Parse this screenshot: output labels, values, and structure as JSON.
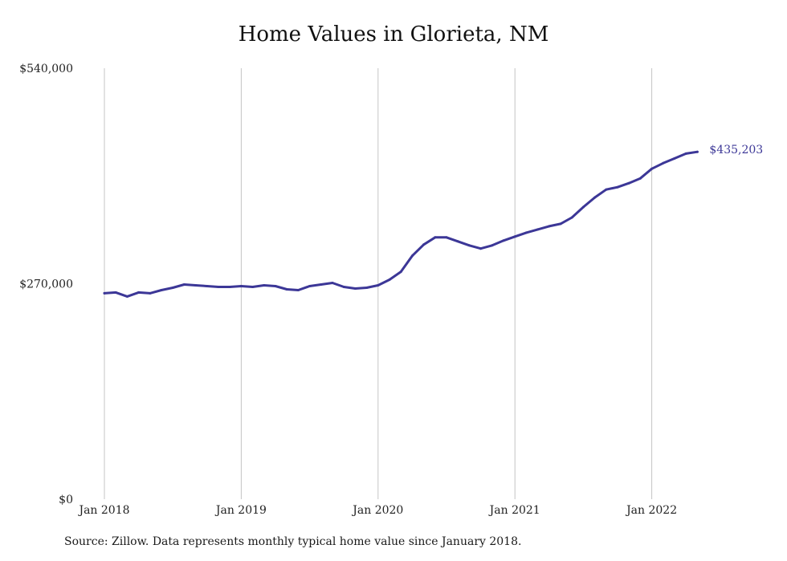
{
  "chart_data": {
    "type": "line",
    "title": "Home Values in Glorieta, NM",
    "xlabel": "",
    "ylabel": "",
    "ylim": [
      0,
      540000
    ],
    "y_ticks": [
      {
        "value": 0,
        "label": "$0"
      },
      {
        "value": 270000,
        "label": "$270,000"
      },
      {
        "value": 540000,
        "label": "$540,000"
      }
    ],
    "x_ticks": [
      "Jan 2018",
      "Jan 2019",
      "Jan 2020",
      "Jan 2021",
      "Jan 2022"
    ],
    "grid": "vertical",
    "line_color": "#3c3797",
    "series": [
      {
        "x": [
          "2018-01",
          "2018-02",
          "2018-03",
          "2018-04",
          "2018-05",
          "2018-06",
          "2018-07",
          "2018-08",
          "2018-09",
          "2018-10",
          "2018-11",
          "2018-12",
          "2019-01",
          "2019-02",
          "2019-03",
          "2019-04",
          "2019-05",
          "2019-06",
          "2019-07",
          "2019-08",
          "2019-09",
          "2019-10",
          "2019-11",
          "2019-12",
          "2020-01",
          "2020-02",
          "2020-03",
          "2020-04",
          "2020-05",
          "2020-06",
          "2020-07",
          "2020-08",
          "2020-09",
          "2020-10",
          "2020-11",
          "2020-12",
          "2021-01",
          "2021-02",
          "2021-03",
          "2021-04",
          "2021-05",
          "2021-06",
          "2021-07",
          "2021-08",
          "2021-09",
          "2021-10",
          "2021-11",
          "2021-12",
          "2022-01",
          "2022-02",
          "2022-03",
          "2022-04",
          "2022-05"
        ],
        "values": [
          258000,
          259000,
          254000,
          259000,
          258000,
          262000,
          265000,
          269000,
          268000,
          267000,
          266000,
          266000,
          267000,
          266000,
          268000,
          267000,
          263000,
          262000,
          267000,
          269000,
          271000,
          266000,
          264000,
          265000,
          268000,
          275000,
          285000,
          305000,
          319000,
          328000,
          328000,
          323000,
          318000,
          314000,
          318000,
          324000,
          329000,
          334000,
          338000,
          342000,
          345000,
          353000,
          366000,
          378000,
          388000,
          391000,
          396000,
          402000,
          414000,
          421000,
          427000,
          433000,
          435203
        ]
      }
    ],
    "end_label": "$435,203"
  },
  "source": "Source: Zillow. Data represents monthly typical home value since January 2018."
}
